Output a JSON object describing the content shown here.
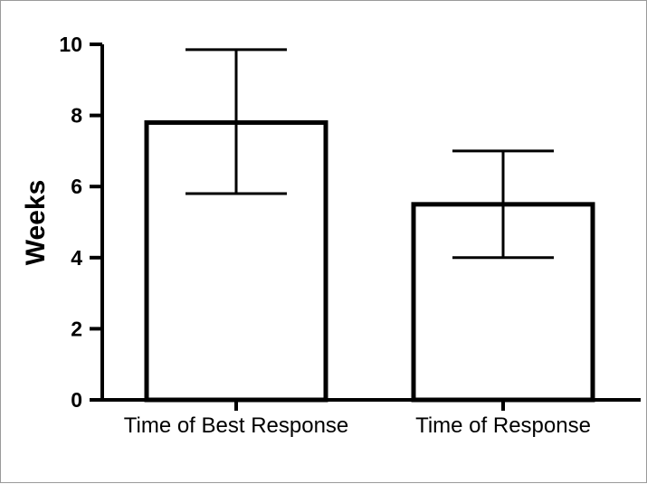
{
  "chart_data": {
    "type": "bar",
    "categories": [
      "Time of Best Response",
      "Time of Response"
    ],
    "values": [
      7.8,
      5.5
    ],
    "error_upper": [
      9.85,
      7.0
    ],
    "error_lower": [
      5.8,
      4.0
    ],
    "ylabel": "Weeks",
    "ylim": [
      0,
      10
    ],
    "yticks": [
      "0",
      "2",
      "4",
      "6",
      "8",
      "10"
    ],
    "grid": false
  }
}
